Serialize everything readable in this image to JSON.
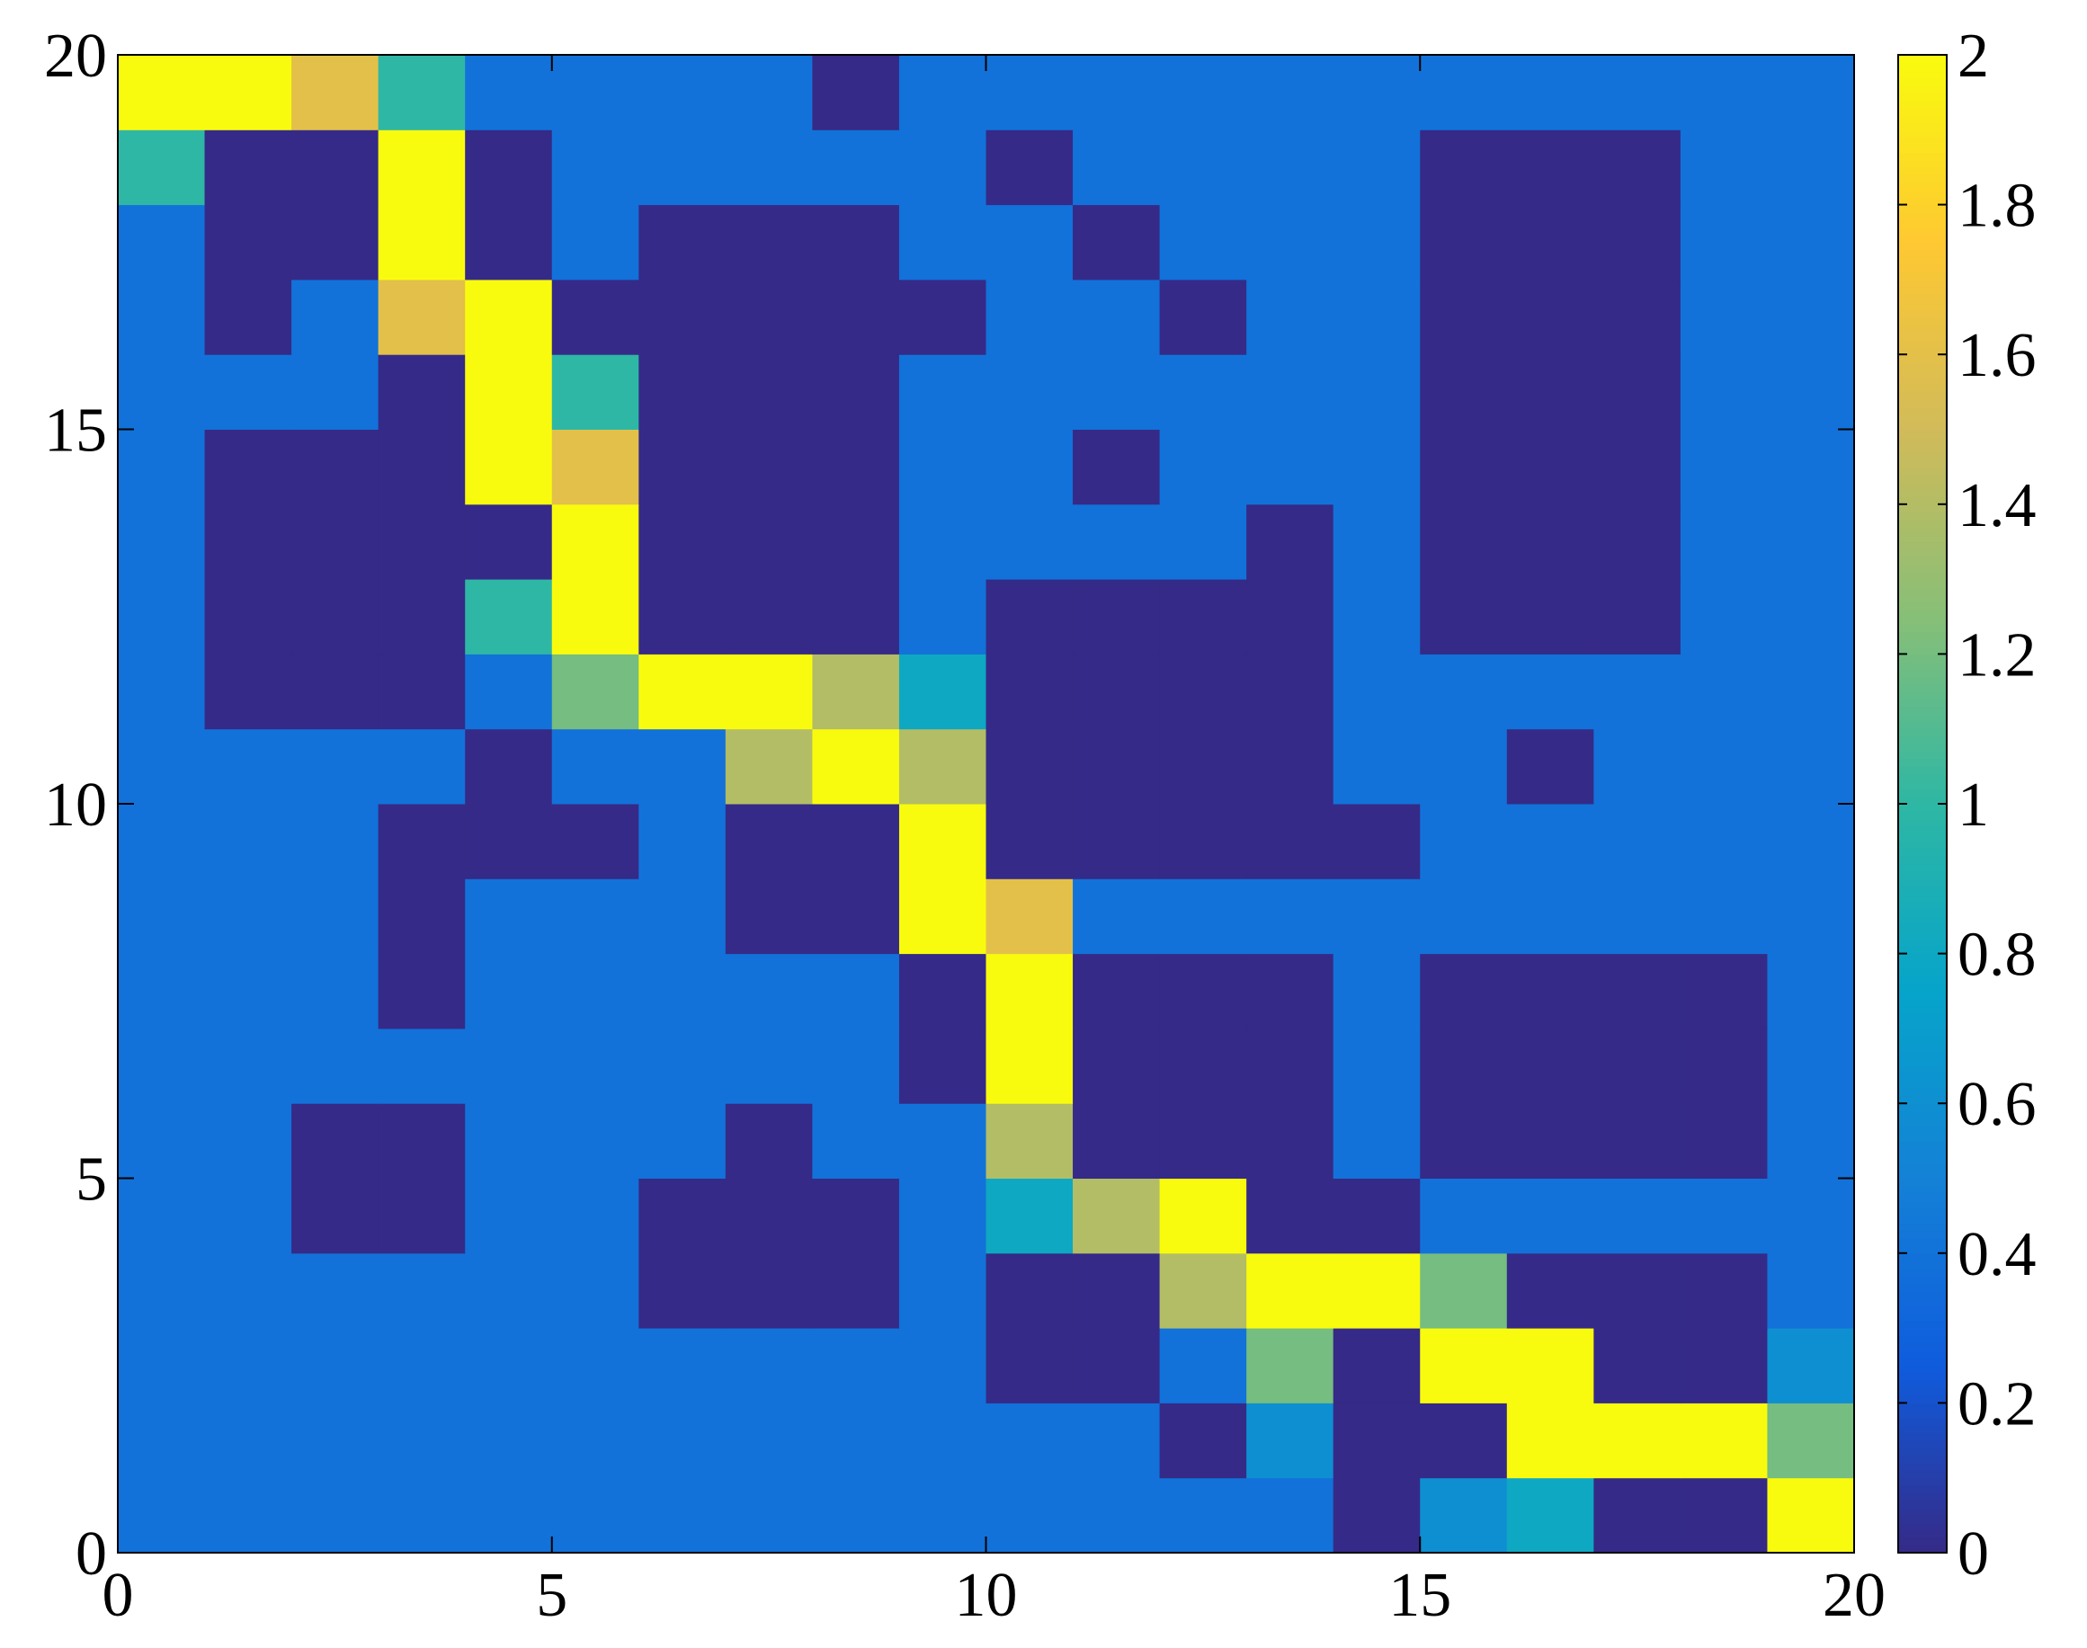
{
  "chart_data": {
    "type": "heatmap",
    "xlim": [
      0,
      20
    ],
    "ylim": [
      0,
      20
    ],
    "xticks": [
      0,
      5,
      10,
      15,
      20
    ],
    "yticks": [
      0,
      5,
      10,
      15,
      20
    ],
    "clim": [
      0,
      2
    ],
    "cticks": [
      0,
      0.2,
      0.4,
      0.6,
      0.8,
      1,
      1.2,
      1.4,
      1.6,
      1.8,
      2
    ],
    "colormap": [
      "#352a87",
      "#0f5cdd",
      "#1481d6",
      "#06a4ca",
      "#2eb7a4",
      "#87bf77",
      "#d1bb59",
      "#fec832",
      "#f9fb0e"
    ],
    "z": [
      [
        0.4,
        0.4,
        0.4,
        0.4,
        0.4,
        0.4,
        0.4,
        0.4,
        0.4,
        0.4,
        0.4,
        0.4,
        0.4,
        0.4,
        0,
        0.6,
        0.8,
        0,
        0,
        2
      ],
      [
        0.4,
        0.4,
        0.4,
        0.4,
        0.4,
        0.4,
        0.4,
        0.4,
        0.4,
        0.4,
        0.4,
        0.4,
        0,
        0.6,
        0,
        0,
        2,
        2,
        2,
        1.2
      ],
      [
        0.4,
        0.4,
        0.4,
        0.4,
        0.4,
        0.4,
        0.4,
        0.4,
        0.4,
        0.4,
        0,
        0,
        0.4,
        1.2,
        0,
        2,
        2,
        0,
        0,
        0.6
      ],
      [
        0.4,
        0.4,
        0.4,
        0.4,
        0.4,
        0.4,
        0,
        0,
        0,
        0.4,
        0,
        0,
        1.4,
        2,
        2,
        1.2,
        0,
        0,
        0,
        0.4
      ],
      [
        0.4,
        0.4,
        0,
        0,
        0.4,
        0.4,
        0,
        0,
        0,
        0.4,
        0.8,
        1.4,
        2,
        0,
        0,
        0.4,
        0.4,
        0.4,
        0.4,
        0.4
      ],
      [
        0.4,
        0.4,
        0,
        0,
        0.4,
        0.4,
        0.4,
        0,
        0.4,
        0.4,
        1.4,
        0,
        0,
        0,
        0.4,
        0,
        0,
        0,
        0,
        0.4
      ],
      [
        0.4,
        0.4,
        0.4,
        0.4,
        0.4,
        0.4,
        0.4,
        0.4,
        0.4,
        0,
        2,
        0,
        0,
        0,
        0.4,
        0,
        0,
        0,
        0,
        0.4
      ],
      [
        0.4,
        0.4,
        0.4,
        0,
        0.4,
        0.4,
        0.4,
        0.4,
        0.4,
        0,
        2,
        0,
        0,
        0,
        0.4,
        0,
        0,
        0,
        0,
        0.4
      ],
      [
        0.4,
        0.4,
        0.4,
        0,
        0.4,
        0.4,
        0.4,
        0,
        0,
        2,
        1.6,
        0.4,
        0.4,
        0.4,
        0.4,
        0.4,
        0.4,
        0.4,
        0.4,
        0.4
      ],
      [
        0.4,
        0.4,
        0.4,
        0,
        0,
        0,
        0.4,
        0,
        0,
        2,
        0,
        0,
        0,
        0,
        0,
        0.4,
        0.4,
        0.4,
        0.4,
        0.4
      ],
      [
        0.4,
        0.4,
        0.4,
        0.4,
        0,
        0.4,
        0.4,
        1.4,
        2,
        1.4,
        0,
        0,
        0,
        0,
        0.4,
        0.4,
        0,
        0.4,
        0.4,
        0.4
      ],
      [
        0.4,
        0,
        0,
        0,
        0.4,
        1.2,
        2,
        2,
        1.4,
        0.8,
        0,
        0,
        0,
        0,
        0.4,
        0.4,
        0.4,
        0.4,
        0.4,
        0.4
      ],
      [
        0.4,
        0,
        0,
        0,
        1,
        2,
        0,
        0,
        0,
        0.4,
        0,
        0,
        0,
        0,
        0.4,
        0,
        0,
        0,
        0.4,
        0.4
      ],
      [
        0.4,
        0,
        0,
        0,
        0,
        2,
        0,
        0,
        0,
        0.4,
        0.4,
        0.4,
        0.4,
        0,
        0.4,
        0,
        0,
        0,
        0.4,
        0.4
      ],
      [
        0.4,
        0,
        0,
        0,
        2,
        1.6,
        0,
        0,
        0,
        0.4,
        0.4,
        0,
        0.4,
        0.4,
        0.4,
        0,
        0,
        0,
        0.4,
        0.4
      ],
      [
        0.4,
        0.4,
        0.4,
        0,
        2,
        1,
        0,
        0,
        0,
        0.4,
        0.4,
        0.4,
        0.4,
        0.4,
        0.4,
        0,
        0,
        0,
        0.4,
        0.4
      ],
      [
        0.4,
        0,
        0.4,
        1.6,
        2,
        0,
        0,
        0,
        0,
        0,
        0.4,
        0.4,
        0,
        0.4,
        0.4,
        0,
        0,
        0,
        0.4,
        0.4
      ],
      [
        0.4,
        0,
        0,
        2,
        0,
        0.4,
        0,
        0,
        0,
        0.4,
        0.4,
        0,
        0.4,
        0.4,
        0.4,
        0,
        0,
        0,
        0.4,
        0.4
      ],
      [
        1,
        0,
        0,
        2,
        0,
        0.4,
        0.4,
        0.4,
        0.4,
        0.4,
        0,
        0.4,
        0.4,
        0.4,
        0.4,
        0,
        0,
        0,
        0.4,
        0.4
      ],
      [
        2,
        2,
        1.6,
        1,
        0.4,
        0.4,
        0.4,
        0.4,
        0,
        0.4,
        0.4,
        0.4,
        0.4,
        0.4,
        0.4,
        0.4,
        0.4,
        0.4,
        0.4,
        0.4
      ]
    ]
  }
}
